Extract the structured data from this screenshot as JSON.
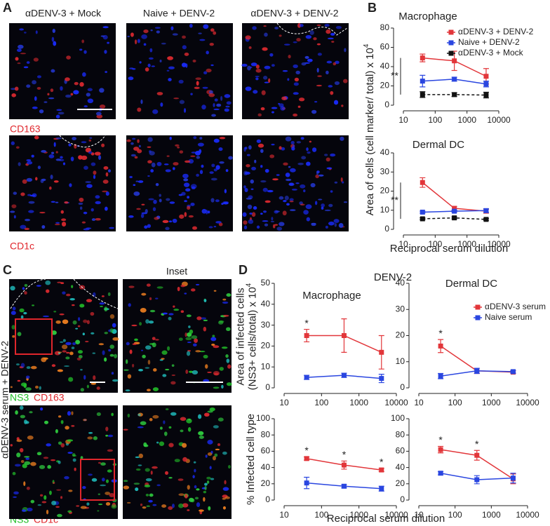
{
  "figure": {
    "panel_labels": [
      "A",
      "B",
      "C",
      "D"
    ],
    "a": {
      "columns": [
        "αDENV-3 + Mock",
        "Naive + DENV-2",
        "αDENV-3 + DENV-2"
      ],
      "rows": [
        "CD163",
        "CD1c"
      ]
    },
    "b": {
      "x_label": "Reciprocal serum dilution"
    },
    "c": {
      "inset": "Inset",
      "side_label": "αDENV-3 serum + DENV-2",
      "rows": [
        [
          "NS3",
          "CD163"
        ],
        [
          "NS3",
          "CD1c"
        ]
      ]
    },
    "d": {
      "title": "DENV-2",
      "x_label": "Reciprocal serum dilution"
    }
  },
  "chart_data": [
    {
      "type": "line",
      "title": "Macrophage",
      "log_x": true,
      "y_label": "Area of cells (cell marker/ total) x 10",
      "y_label_exp": "4",
      "x": [
        40,
        400,
        4000
      ],
      "xlim": [
        10,
        10000
      ],
      "xticks": [
        10,
        100,
        1000,
        10000
      ],
      "ylim": [
        0,
        80
      ],
      "yticks": [
        0,
        20,
        40,
        60,
        80
      ],
      "series": [
        {
          "name": "αDENV-3 + DENV-2",
          "color": "#e2363a",
          "values": [
            49,
            46,
            30
          ],
          "errors": [
            4,
            10,
            8
          ]
        },
        {
          "name": "Naive + DENV-2",
          "color": "#2a46e0",
          "values": [
            25,
            27,
            22
          ],
          "errors": [
            6,
            2,
            3
          ]
        },
        {
          "name": "αDENV-3 + Mock",
          "color": "#111111",
          "dashed": true,
          "values": [
            11,
            11,
            10.5
          ],
          "errors": [
            3,
            2,
            3
          ]
        }
      ],
      "annotations": [
        {
          "text": "**",
          "x": 40
        }
      ]
    },
    {
      "type": "line",
      "title": "Dermal DC",
      "log_x": true,
      "x": [
        40,
        400,
        4000
      ],
      "xlim": [
        10,
        10000
      ],
      "xticks": [
        10,
        100,
        1000,
        10000
      ],
      "ylim": [
        0,
        40
      ],
      "yticks": [
        0,
        10,
        20,
        30,
        40
      ],
      "series": [
        {
          "color": "#e2363a",
          "values": [
            24.5,
            11,
            9.5
          ],
          "errors": [
            2.5,
            1,
            1
          ]
        },
        {
          "color": "#2a46e0",
          "values": [
            9,
            9.5,
            9.8
          ],
          "errors": [
            0.5,
            0.5,
            1
          ]
        },
        {
          "color": "#111111",
          "dashed": true,
          "values": [
            5.5,
            6,
            5.2
          ],
          "errors": [
            0.5,
            0.5,
            0.5
          ]
        }
      ],
      "annotations": [
        {
          "text": "**",
          "x": 40
        }
      ]
    },
    {
      "type": "line",
      "title": "Macrophage",
      "log_x": true,
      "y_label": [
        "Area of infected cells",
        "(NS3+ cells/total) x 10"
      ],
      "y_label_exp": "4",
      "x": [
        40,
        400,
        4000
      ],
      "xlim": [
        10,
        10000
      ],
      "xticks": [
        10,
        100,
        1000,
        10000
      ],
      "ylim": [
        0,
        50
      ],
      "yticks": [
        0,
        10,
        20,
        30,
        40,
        50
      ],
      "series": [
        {
          "color": "#e2363a",
          "values": [
            25,
            25,
            17
          ],
          "errors": [
            3,
            8,
            8
          ]
        },
        {
          "color": "#2a46e0",
          "values": [
            5,
            6,
            4.5
          ],
          "errors": [
            1,
            1,
            2
          ]
        }
      ],
      "annotations": [
        {
          "text": "*",
          "x": 40
        }
      ]
    },
    {
      "type": "line",
      "title": "Dermal DC",
      "log_x": true,
      "x": [
        40,
        400,
        4000
      ],
      "xlim": [
        10,
        10000
      ],
      "xticks": [
        10,
        100,
        1000,
        10000
      ],
      "ylim": [
        0,
        40
      ],
      "yticks": [
        0,
        10,
        20,
        30,
        40
      ],
      "series": [
        {
          "name": "αDENV-3 serum",
          "color": "#e2363a",
          "values": [
            16,
            6.5,
            6
          ],
          "errors": [
            2.5,
            1,
            0.5
          ]
        },
        {
          "name": "Naive serum",
          "color": "#2a46e0",
          "values": [
            4.5,
            6.5,
            6.2
          ],
          "errors": [
            1,
            1,
            0.5
          ]
        }
      ],
      "annotations": [
        {
          "text": "*",
          "x": 40
        }
      ]
    },
    {
      "type": "line",
      "log_x": true,
      "y_label": "% Infected cell type",
      "x": [
        40,
        400,
        4000
      ],
      "xlim": [
        10,
        10000
      ],
      "xticks": [
        10,
        100,
        1000,
        10000
      ],
      "ylim": [
        0,
        100
      ],
      "yticks": [
        0,
        20,
        40,
        60,
        80,
        100
      ],
      "series": [
        {
          "color": "#e2363a",
          "values": [
            51,
            43,
            37
          ],
          "errors": [
            2,
            5,
            2
          ]
        },
        {
          "color": "#2a46e0",
          "values": [
            21,
            17,
            14
          ],
          "errors": [
            7,
            2,
            3
          ]
        }
      ],
      "annotations": [
        {
          "text": "*",
          "x": 40
        },
        {
          "text": "*",
          "x": 400
        },
        {
          "text": "*",
          "x": 4000
        }
      ]
    },
    {
      "type": "line",
      "log_x": true,
      "x": [
        40,
        400,
        4000
      ],
      "xlim": [
        10,
        10000
      ],
      "xticks": [
        10,
        100,
        1000,
        10000
      ],
      "ylim": [
        0,
        100
      ],
      "yticks": [
        0,
        20,
        40,
        60,
        80,
        100
      ],
      "series": [
        {
          "color": "#e2363a",
          "values": [
            62,
            55,
            26
          ],
          "errors": [
            4,
            6,
            6
          ]
        },
        {
          "color": "#2a46e0",
          "values": [
            33,
            25,
            27
          ],
          "errors": [
            2,
            5,
            6
          ]
        }
      ],
      "annotations": [
        {
          "text": "*",
          "x": 40
        },
        {
          "text": "*",
          "x": 400
        }
      ]
    }
  ]
}
